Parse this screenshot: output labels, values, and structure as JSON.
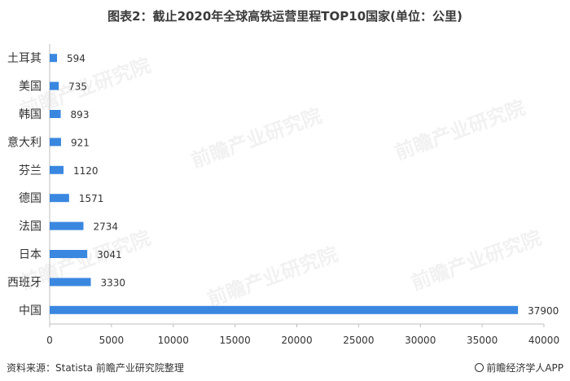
{
  "title": "图表2：截止2020年全球高铁运营里程TOP10国家(单位：公里)",
  "source": "资料来源：Statista 前瞻产业研究院整理",
  "brand": "前瞻经济学人APP",
  "watermark": "前瞻产业研究院",
  "colors": {
    "bar": "#3a87e0",
    "axis": "#bfbfbf"
  },
  "chart_data": {
    "type": "bar",
    "orientation": "horizontal",
    "title": "图表2：截止2020年全球高铁运营里程TOP10国家(单位：公里)",
    "xlabel": "",
    "ylabel": "",
    "xlim": [
      0,
      40000
    ],
    "xticks": [
      0,
      5000,
      10000,
      15000,
      20000,
      25000,
      30000,
      35000,
      40000
    ],
    "grid": false,
    "categories": [
      "土耳其",
      "美国",
      "韩国",
      "意大利",
      "芬兰",
      "德国",
      "法国",
      "日本",
      "西班牙",
      "中国"
    ],
    "values": [
      594,
      735,
      893,
      921,
      1120,
      1571,
      2734,
      3041,
      3330,
      37900
    ]
  }
}
